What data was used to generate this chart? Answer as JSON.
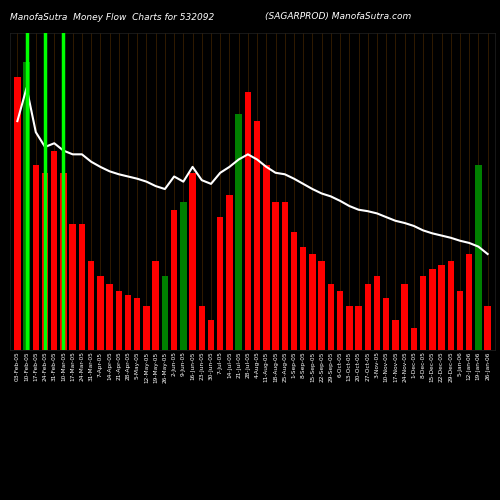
{
  "title_left": "ManofaSutra  Money Flow  Charts for 532092",
  "title_right": "(SAGARPROD) ManofaSutra.com",
  "background_color": "#000000",
  "line_color": "#ffffff",
  "line_width": 1.5,
  "bar_width": 0.7,
  "figsize": [
    5.0,
    5.0
  ],
  "dpi": 100,
  "labels": [
    "03-Feb-05",
    "10-Feb-05",
    "17-Feb-05",
    "24-Feb-05",
    "31-Feb-05",
    "10-Mar-05",
    "17-Mar-05",
    "24-Mar-05",
    "31-Mar-05",
    "7-Apr-05",
    "14-Apr-05",
    "21-Apr-05",
    "28-Apr-05",
    "5-May-05",
    "12-May-05",
    "19-May-05",
    "26-May-05",
    "2-Jun-05",
    "9-Jun-05",
    "16-Jun-05",
    "23-Jun-05",
    "30-Jun-05",
    "7-Jul-05",
    "14-Jul-05",
    "21-Jul-05",
    "28-Jul-05",
    "4-Aug-05",
    "11-Aug-05",
    "18-Aug-05",
    "25-Aug-05",
    "1-Sep-05",
    "8-Sep-05",
    "15-Sep-05",
    "22-Sep-05",
    "29-Sep-05",
    "6-Oct-05",
    "13-Oct-05",
    "20-Oct-05",
    "27-Oct-05",
    "3-Nov-05",
    "10-Nov-05",
    "17-Nov-05",
    "24-Nov-05",
    "1-Dec-05",
    "8-Dec-05",
    "15-Dec-05",
    "22-Dec-05",
    "29-Dec-05",
    "5-Jan-06",
    "12-Jan-06",
    "19-Jan-06",
    "26-Jan-06"
  ],
  "bar_heights": [
    370,
    390,
    250,
    240,
    270,
    240,
    170,
    170,
    120,
    100,
    90,
    80,
    75,
    70,
    60,
    120,
    100,
    190,
    200,
    240,
    60,
    40,
    180,
    210,
    320,
    350,
    310,
    250,
    200,
    200,
    160,
    140,
    130,
    120,
    90,
    80,
    60,
    60,
    90,
    100,
    70,
    40,
    90,
    30,
    100,
    110,
    115,
    120,
    80,
    130,
    250,
    60
  ],
  "bar_colors": [
    "red",
    "green",
    "red",
    "red",
    "red",
    "red",
    "red",
    "red",
    "red",
    "red",
    "red",
    "red",
    "red",
    "red",
    "red",
    "red",
    "green",
    "red",
    "green",
    "red",
    "red",
    "red",
    "red",
    "red",
    "green",
    "red",
    "red",
    "red",
    "red",
    "red",
    "red",
    "red",
    "red",
    "red",
    "red",
    "red",
    "red",
    "red",
    "red",
    "red",
    "red",
    "red",
    "red",
    "red",
    "red",
    "red",
    "red",
    "red",
    "red",
    "red",
    "green",
    "red"
  ],
  "line_values": [
    310,
    355,
    295,
    275,
    280,
    270,
    265,
    265,
    255,
    248,
    242,
    238,
    235,
    232,
    228,
    222,
    218,
    235,
    228,
    248,
    230,
    225,
    240,
    248,
    258,
    265,
    258,
    248,
    240,
    238,
    232,
    225,
    218,
    212,
    208,
    202,
    195,
    190,
    188,
    185,
    180,
    175,
    172,
    168,
    162,
    158,
    155,
    152,
    148,
    145,
    140,
    130
  ],
  "green_vline_positions": [
    1,
    3,
    5
  ],
  "thin_vline_color": "#4a2800",
  "thin_vline_alpha": 0.9
}
